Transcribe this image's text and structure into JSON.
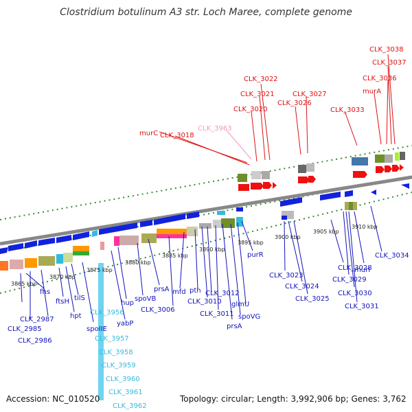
{
  "title": "Clostridium botulinum A3 str. Loch Maree, complete genome",
  "accession": "Accession: NC_010520",
  "topology": "Topology: circular; Length: 3,992,906 bp; Genes: 3,762",
  "colors": {
    "upper_label": "#dd1111",
    "upper_label_faint": "#ee99bb",
    "lower_label": "#1111bb",
    "lower_label_cyan": "#33bbdd",
    "backbone": "#777777",
    "tick_green": "#338833"
  },
  "kbp_ticks": [
    "3865 kbp",
    "3870 kbp",
    "3875 kbp",
    "3880 kbp",
    "3885 kbp",
    "3890 kbp",
    "3895 kbp",
    "3900 kbp",
    "3905 kbp",
    "3910 kbp"
  ],
  "upper_labels": [
    "CLK_3038",
    "CLK_3037",
    "CLK_3036",
    "murA",
    "CLK_3022",
    "CLK_3021",
    "CLK_3027",
    "CLK_3020",
    "CLK_3026",
    "CLK_3033",
    "CLK_3963",
    "murC",
    "CLK_3018"
  ],
  "lower_labels": [
    "CLK_3023",
    "CLK_3024",
    "CLK_3025",
    "purR",
    "CLK_3028",
    "murI",
    "CLK_3034",
    "CLK_3029",
    "CLK_3030",
    "CLK_3031",
    "fhs",
    "CLK_2987",
    "CLK_2985",
    "CLK_2986",
    "ftsH",
    "hpt",
    "tilS",
    "CLK_3956",
    "spoIIE",
    "yabP",
    "hup",
    "spoVB",
    "prsA",
    "CLK_3006",
    "mfd",
    "pth",
    "CLK_3010",
    "CLK_3012",
    "CLK_3011",
    "glmU",
    "prsA",
    "spoVG",
    "CLK_3957",
    "CLK_3958",
    "CLK_3959",
    "CLK_3960",
    "CLK_3961",
    "CLK_3962"
  ]
}
